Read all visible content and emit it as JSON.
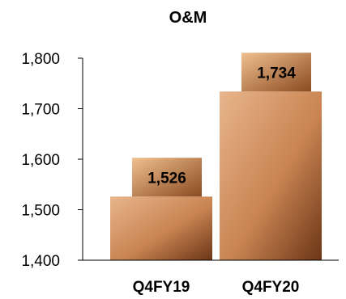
{
  "chart_data": {
    "type": "bar",
    "title": "O&M",
    "categories": [
      "Q4FY19",
      "Q4FY20"
    ],
    "values": [
      1526,
      1734
    ],
    "data_labels": [
      "1,526",
      "1,734"
    ],
    "ylim": [
      1400,
      1800
    ],
    "yticks": [
      1400,
      1500,
      1600,
      1700,
      1800
    ],
    "ytick_labels": [
      "1,400",
      "1,500",
      "1,600",
      "1,700",
      "1,800"
    ],
    "xlabel": "",
    "ylabel": "",
    "grid": false,
    "legend": "none",
    "colors": {
      "bar_light": "#e8b58c",
      "bar_mid": "#c98452",
      "bar_dark": "#6b3516",
      "label_light": "#f0c090",
      "label_dark": "#8a4a20",
      "axis": "#000000"
    }
  }
}
